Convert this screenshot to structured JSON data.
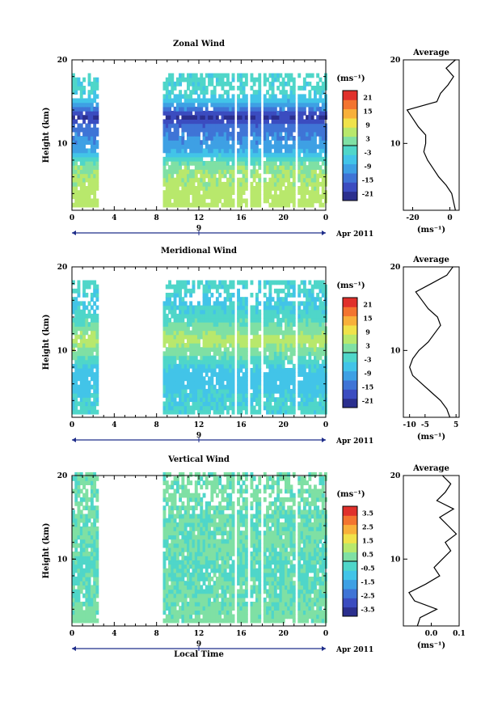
{
  "x_axis": {
    "ticks": [
      "0",
      "4",
      "8",
      "12",
      "16",
      "20",
      "0"
    ],
    "date_tick": "9",
    "date_label": "Apr 2011",
    "title": "Local Time"
  },
  "y_axis": {
    "ticks": [
      "20",
      "10"
    ],
    "label": "Height (km)"
  },
  "avg_title": "Average",
  "unit": "(ms⁻¹)",
  "panels": [
    {
      "title": "Zonal Wind",
      "colorbar_ticks": [
        "21",
        "15",
        "9",
        "3",
        "-3",
        "-9",
        "-15",
        "-21"
      ],
      "avg_x_ticks": [
        "-20",
        "0"
      ]
    },
    {
      "title": "Meridional Wind",
      "colorbar_ticks": [
        "21",
        "15",
        "9",
        "3",
        "-3",
        "-9",
        "-15",
        "-21"
      ],
      "avg_x_ticks": [
        "-10",
        "-5",
        "5"
      ]
    },
    {
      "title": "Vertical Wind",
      "colorbar_ticks": [
        "3.5",
        "2.5",
        "1.5",
        "0.5",
        "-0.5",
        "-1.5",
        "-2.5",
        "-3.5"
      ],
      "avg_x_ticks": [
        "0.0",
        "0.1"
      ]
    }
  ],
  "chart_data": [
    {
      "type": "heatmap",
      "title": "Zonal Wind",
      "xlabel": "Local Time",
      "ylabel": "Height (km)",
      "xlim": [
        0,
        24
      ],
      "ylim": [
        2,
        20
      ],
      "colorbar": {
        "min": -24,
        "max": 24,
        "ticks": [
          21,
          15,
          9,
          3,
          -3,
          -9,
          -15,
          -21
        ]
      },
      "data_time_ranges": [
        [
          0,
          2.5
        ],
        [
          8.6,
          24
        ]
      ],
      "gap_times": [
        [
          2.5,
          8.6
        ],
        [
          15.2,
          15.6
        ],
        [
          16.4,
          16.8
        ],
        [
          17.7,
          18.1
        ],
        [
          21.0,
          21.3
        ]
      ],
      "height_profile": [
        {
          "height": 3,
          "value": 6
        },
        {
          "height": 5,
          "value": 5
        },
        {
          "height": 7,
          "value": 3
        },
        {
          "height": 8,
          "value": -3
        },
        {
          "height": 9,
          "value": -9
        },
        {
          "height": 10,
          "value": -11
        },
        {
          "height": 11,
          "value": -13
        },
        {
          "height": 12,
          "value": -15
        },
        {
          "height": 13,
          "value": -21
        },
        {
          "height": 14,
          "value": -12
        },
        {
          "height": 15,
          "value": -6
        },
        {
          "height": 16,
          "value": -3
        }
      ],
      "average_profile": {
        "xlim": [
          -25,
          5
        ],
        "height": [
          2,
          3,
          4,
          5,
          6,
          7,
          8,
          9,
          10,
          11,
          12,
          13,
          14,
          15,
          16,
          17,
          18,
          19,
          20
        ],
        "value": [
          3,
          2,
          1,
          -2,
          -6,
          -9,
          -12,
          -14,
          -13,
          -13,
          -17,
          -20,
          -23,
          -7,
          -5,
          -1,
          2,
          -2,
          3
        ]
      }
    },
    {
      "type": "heatmap",
      "title": "Meridional Wind",
      "xlabel": "Local Time",
      "ylabel": "Height (km)",
      "xlim": [
        0,
        24
      ],
      "ylim": [
        2,
        20
      ],
      "colorbar": {
        "min": -24,
        "max": 24,
        "ticks": [
          21,
          15,
          9,
          3,
          -3,
          -9,
          -15,
          -21
        ]
      },
      "data_time_ranges": [
        [
          0,
          2.5
        ],
        [
          8.6,
          24
        ]
      ],
      "gap_times": [
        [
          2.5,
          8.6
        ],
        [
          15.2,
          15.6
        ],
        [
          16.4,
          16.8
        ],
        [
          17.7,
          18.1
        ],
        [
          21.0,
          21.3
        ]
      ],
      "height_profile": [
        {
          "height": 3,
          "value": -3
        },
        {
          "height": 5,
          "value": -5
        },
        {
          "height": 7,
          "value": -6
        },
        {
          "height": 8,
          "value": -4
        },
        {
          "height": 9,
          "value": 0
        },
        {
          "height": 10,
          "value": 3
        },
        {
          "height": 11,
          "value": 6
        },
        {
          "height": 12,
          "value": 3
        },
        {
          "height": 13,
          "value": 0
        },
        {
          "height": 14,
          "value": -3
        },
        {
          "height": 16,
          "value": -5
        },
        {
          "height": 17,
          "value": -3
        }
      ],
      "average_profile": {
        "xlim": [
          -12,
          6
        ],
        "height": [
          2,
          3,
          4,
          5,
          6,
          7,
          8,
          9,
          10,
          11,
          12,
          13,
          14,
          15,
          16,
          17,
          18,
          19,
          20
        ],
        "value": [
          3,
          2,
          0,
          -3,
          -6,
          -9,
          -10,
          -9,
          -7,
          -4,
          -2,
          0,
          -1,
          -4,
          -6,
          -8,
          -3,
          2,
          4
        ]
      }
    },
    {
      "type": "heatmap",
      "title": "Vertical Wind",
      "xlabel": "Local Time",
      "ylabel": "Height (km)",
      "xlim": [
        0,
        24
      ],
      "ylim": [
        2,
        20
      ],
      "colorbar": {
        "min": -4,
        "max": 4,
        "ticks": [
          3.5,
          2.5,
          1.5,
          0.5,
          -0.5,
          -1.5,
          -2.5,
          -3.5
        ]
      },
      "data_time_ranges": [
        [
          0,
          2.5
        ],
        [
          8.6,
          24
        ]
      ],
      "gap_times": [
        [
          2.5,
          8.6
        ],
        [
          15.2,
          15.6
        ],
        [
          16.4,
          16.8
        ],
        [
          17.7,
          18.1
        ],
        [
          21.0,
          21.3
        ]
      ],
      "height_profile": [
        {
          "height": 3,
          "value": 0.2
        },
        {
          "height": 6,
          "value": 0.0
        },
        {
          "height": 9,
          "value": -0.1
        },
        {
          "height": 12,
          "value": 0.1
        },
        {
          "height": 15,
          "value": 0.0
        },
        {
          "height": 18,
          "value": 0.1
        }
      ],
      "average_profile": {
        "xlim": [
          -0.1,
          0.1
        ],
        "height": [
          2,
          3,
          4,
          5,
          6,
          7,
          8,
          9,
          10,
          11,
          12,
          13,
          14,
          15,
          16,
          17,
          18,
          19,
          20
        ],
        "value": [
          -0.05,
          -0.04,
          0.02,
          -0.06,
          -0.08,
          -0.02,
          0.03,
          0.01,
          0.04,
          0.07,
          0.05,
          0.09,
          0.06,
          0.03,
          0.08,
          0.02,
          0.05,
          0.07,
          0.04
        ]
      }
    }
  ]
}
